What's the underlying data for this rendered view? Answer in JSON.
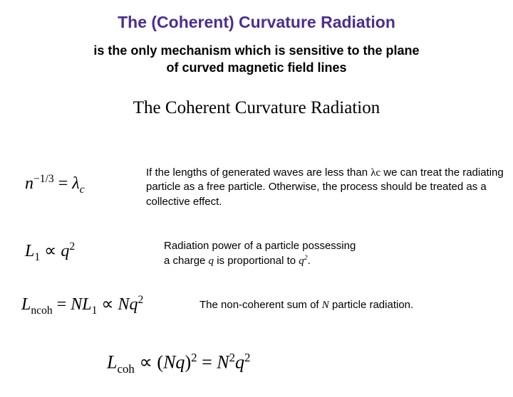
{
  "title": "The (Coherent) Curvature Radiation",
  "subtitle1_line1": "is the only mechanism which is sensitive to the plane",
  "subtitle1_line2": "of curved magnetic field lines",
  "subtitle2": "The Coherent Curvature Radiation",
  "eq1": {
    "lhs_base": "n",
    "lhs_exp": "−1/3",
    "eq": " = ",
    "rhs_sym": "λ",
    "rhs_sub": "c"
  },
  "text1a": "If the lengths of generated waves are less than ",
  "text1_sym": "λc",
  "text1b": " we can treat the radiating particle as a free particle. Otherwise, the process should be treated as a collective effect.",
  "eq2": {
    "lhs": "L",
    "lhs_sub": "1",
    "prop": " ∝ ",
    "rhs": "q",
    "rhs_sup": "2"
  },
  "text2a": "Radiation power of a particle possessing",
  "text2b": "a charge ",
  "text2_q": "q",
  "text2c": " is proportional to ",
  "text2_q2": "q",
  "text2_q2sup": "2",
  "text2d": ".",
  "eq3": {
    "lhs": "L",
    "lhs_sub": "ncoh",
    "eq": " = ",
    "mid1": "NL",
    "mid1_sub": "1",
    "prop": " ∝ ",
    "rhs": "Nq",
    "rhs_sup": "2"
  },
  "text3a": "The non-coherent sum of ",
  "text3_N": "N",
  "text3b": " particle radiation.",
  "eq4": {
    "lhs": "L",
    "lhs_sub": "coh",
    "prop": " ∝ (",
    "mid": "Nq",
    "close": ")",
    "sup1": "2",
    "eq": " = ",
    "rhs1": "N",
    "rhs1_sup": "2",
    "rhs2": "q",
    "rhs2_sup": "2"
  },
  "colors": {
    "title": "#4d2e8c",
    "text": "#000000",
    "bg": "#ffffff"
  },
  "typography": {
    "title_size": 23,
    "subtitle1_size": 18,
    "subtitle2_size": 25,
    "body_size": 15,
    "eq_size": 24,
    "eq4_size": 26,
    "title_family": "Arial",
    "eq_family": "Times New Roman"
  }
}
